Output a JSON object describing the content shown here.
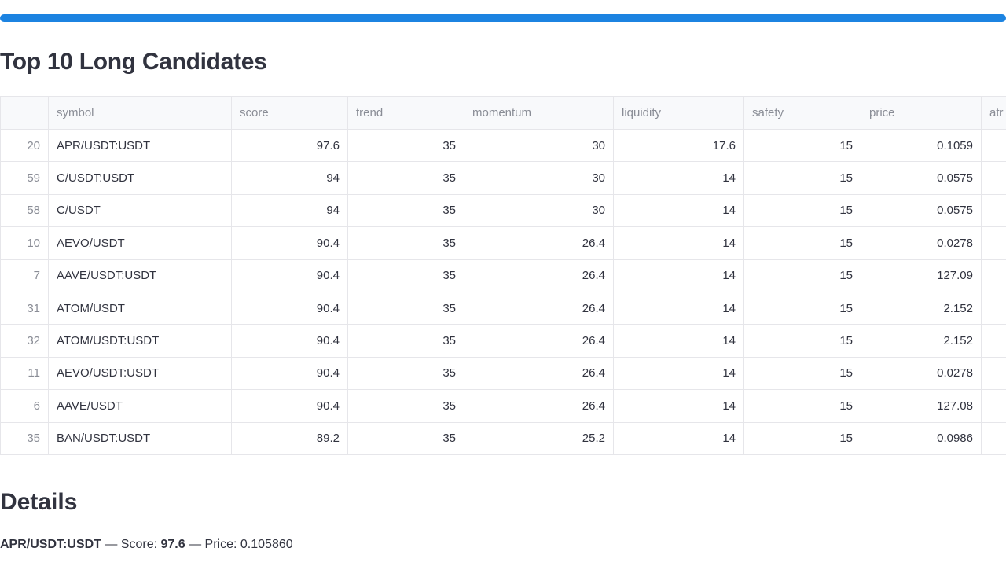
{
  "page_title": "Top 10 Long Candidates",
  "table": {
    "columns": [
      "",
      "symbol",
      "score",
      "trend",
      "momentum",
      "liquidity",
      "safety",
      "price",
      "atr"
    ],
    "rows": [
      [
        20,
        "APR/USDT:USDT",
        97.6,
        35,
        30,
        17.6,
        15,
        0.1059
      ],
      [
        59,
        "C/USDT:USDT",
        94,
        35,
        30,
        14,
        15,
        0.0575
      ],
      [
        58,
        "C/USDT",
        94,
        35,
        30,
        14,
        15,
        0.0575
      ],
      [
        10,
        "AEVO/USDT",
        90.4,
        35,
        26.4,
        14,
        15,
        0.0278
      ],
      [
        7,
        "AAVE/USDT:USDT",
        90.4,
        35,
        26.4,
        14,
        15,
        127.09
      ],
      [
        31,
        "ATOM/USDT",
        90.4,
        35,
        26.4,
        14,
        15,
        2.152
      ],
      [
        32,
        "ATOM/USDT:USDT",
        90.4,
        35,
        26.4,
        14,
        15,
        2.152
      ],
      [
        11,
        "AEVO/USDT:USDT",
        90.4,
        35,
        26.4,
        14,
        15,
        0.0278
      ],
      [
        6,
        "AAVE/USDT",
        90.4,
        35,
        26.4,
        14,
        15,
        127.08
      ],
      [
        35,
        "BAN/USDT:USDT",
        89.2,
        35,
        25.2,
        14,
        15,
        0.0986
      ]
    ]
  },
  "details": {
    "title": "Details",
    "symbol": "APR/USDT:USDT",
    "separator": "—",
    "score_label": "Score:",
    "score": "97.6",
    "price_label": "Price:",
    "price": "0.105860"
  }
}
